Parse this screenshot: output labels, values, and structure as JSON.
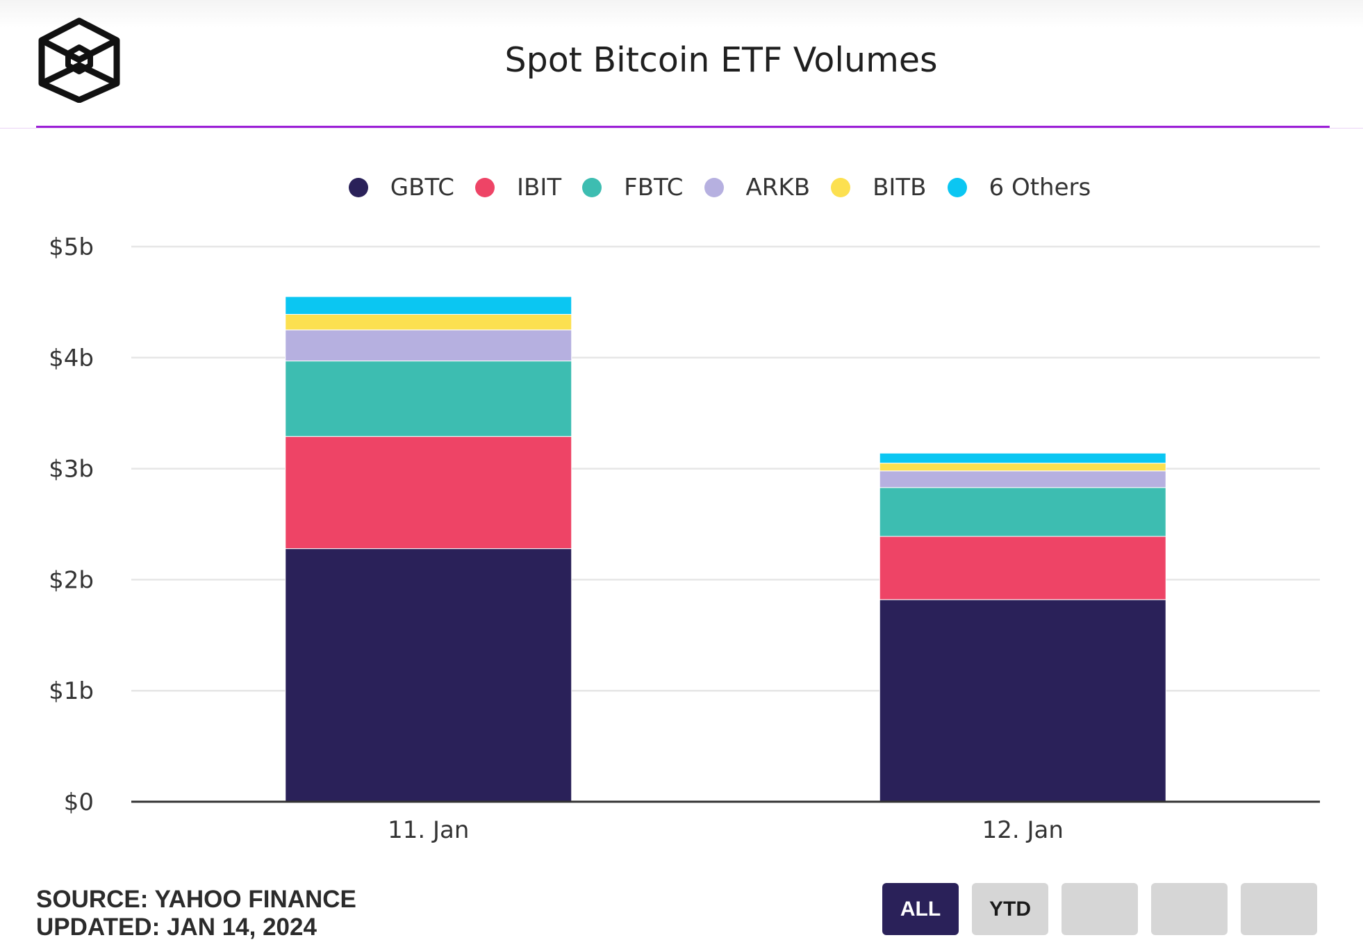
{
  "header": {
    "title": "Spot Bitcoin ETF Volumes"
  },
  "legend": [
    {
      "label": "GBTC",
      "color": "#2a2159"
    },
    {
      "label": "IBIT",
      "color": "#ee4466"
    },
    {
      "label": "FBTC",
      "color": "#3dbdb1"
    },
    {
      "label": "ARKB",
      "color": "#b6b0e0"
    },
    {
      "label": "BITB",
      "color": "#fce050"
    },
    {
      "label": "6 Others",
      "color": "#0bc6f2"
    }
  ],
  "chart_data": {
    "type": "bar",
    "stacked": true,
    "title": "Spot Bitcoin ETF Volumes",
    "categories": [
      "11. Jan",
      "12. Jan"
    ],
    "series": [
      {
        "name": "GBTC",
        "values": [
          2.28,
          1.82
        ]
      },
      {
        "name": "IBIT",
        "values": [
          1.01,
          0.57
        ]
      },
      {
        "name": "FBTC",
        "values": [
          0.68,
          0.44
        ]
      },
      {
        "name": "ARKB",
        "values": [
          0.28,
          0.15
        ]
      },
      {
        "name": "BITB",
        "values": [
          0.14,
          0.07
        ]
      },
      {
        "name": "6 Others",
        "values": [
          0.16,
          0.09
        ]
      }
    ],
    "y_ticks": [
      "$0",
      "$1b",
      "$2b",
      "$3b",
      "$4b",
      "$5b"
    ],
    "ylim": [
      0,
      5
    ],
    "grid": true,
    "legend_position": "top"
  },
  "footer": {
    "source": "SOURCE: YAHOO FINANCE",
    "updated": "UPDATED: JAN 14, 2024"
  },
  "range_buttons": [
    {
      "label": "ALL",
      "active": true
    },
    {
      "label": "YTD",
      "active": false
    },
    {
      "label": "",
      "active": false
    },
    {
      "label": "",
      "active": false
    },
    {
      "label": "",
      "active": false
    }
  ]
}
